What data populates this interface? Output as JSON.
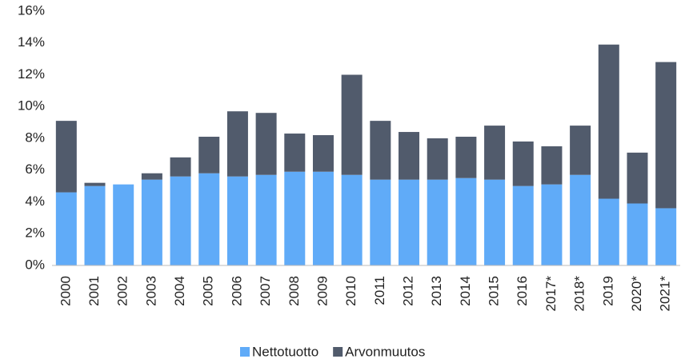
{
  "chart_data": {
    "type": "stacked_bar",
    "categories": [
      "2000",
      "2001",
      "2002",
      "2003",
      "2004",
      "2005",
      "2006",
      "2007",
      "2008",
      "2009",
      "2010",
      "2011",
      "2012",
      "2013",
      "2014",
      "2015",
      "2016",
      "2017*",
      "2018*",
      "2019",
      "2020*",
      "2021*"
    ],
    "series": [
      {
        "name": "Nettotuotto",
        "color": "#60abf8",
        "values": [
          4.6,
          5.0,
          5.1,
          5.4,
          5.6,
          5.8,
          5.6,
          5.7,
          5.9,
          5.9,
          5.7,
          5.4,
          5.4,
          5.4,
          5.5,
          5.4,
          5.0,
          5.1,
          5.7,
          4.2,
          3.9,
          3.6
        ]
      },
      {
        "name": "Arvonmuutos",
        "color": "#515b6c",
        "values": [
          4.5,
          0.2,
          0,
          0.4,
          1.2,
          2.3,
          4.1,
          3.9,
          2.4,
          2.3,
          6.3,
          3.7,
          3.0,
          2.6,
          2.6,
          3.4,
          2.8,
          2.4,
          3.1,
          9.7,
          3.2,
          9.2
        ]
      }
    ],
    "ylim": [
      0,
      16
    ],
    "yticks": [
      {
        "value": 0,
        "label": "0%"
      },
      {
        "value": 2,
        "label": "2%"
      },
      {
        "value": 4,
        "label": "4%"
      },
      {
        "value": 6,
        "label": "6%"
      },
      {
        "value": 8,
        "label": "8%"
      },
      {
        "value": 10,
        "label": "10%"
      },
      {
        "value": 12,
        "label": "12%"
      },
      {
        "value": 14,
        "label": "14%"
      },
      {
        "value": 16,
        "label": "16%"
      }
    ],
    "legend": "bottom"
  }
}
